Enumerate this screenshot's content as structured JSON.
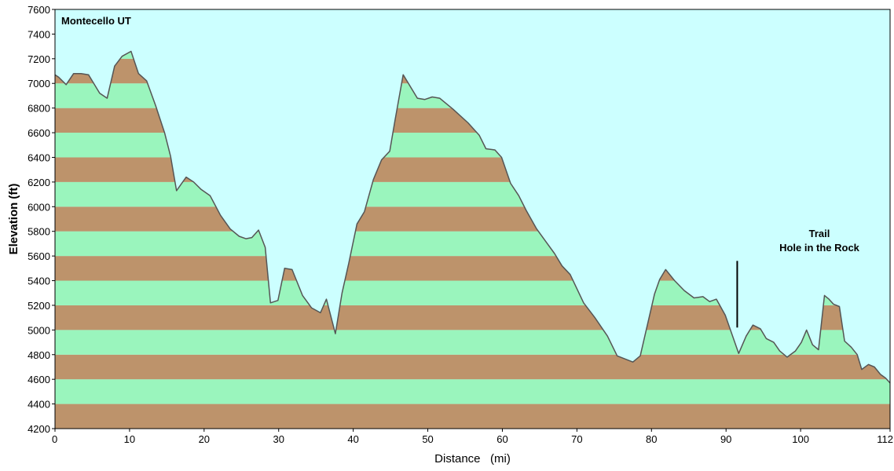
{
  "chart_data": {
    "type": "area",
    "title": "Montecello UT",
    "xlabel": "Distance   (mi)",
    "ylabel": "Elevation (ft)",
    "xlim": [
      0,
      112
    ],
    "ylim": [
      4200,
      7600
    ],
    "x_ticks": [
      0,
      10,
      20,
      30,
      40,
      50,
      60,
      70,
      80,
      90,
      100,
      112
    ],
    "y_ticks": [
      4200,
      4400,
      4600,
      4800,
      5000,
      5200,
      5400,
      5600,
      5800,
      6000,
      6200,
      6400,
      6600,
      6800,
      7000,
      7200,
      7400,
      7600
    ],
    "band_colors": [
      "#bd936b",
      "#9af5bd"
    ],
    "background_color": "#ccffff",
    "line_color": "#555555",
    "grid": false,
    "annotations": [
      {
        "lines": [
          "Trail",
          "Hole in the Rock"
        ],
        "x": 91.5,
        "y_range": [
          5020,
          5560
        ]
      }
    ],
    "series": [
      {
        "x": [
          0,
          0.5,
          1.5,
          2.5,
          3.5,
          4.5,
          6,
          7,
          8,
          9,
          10.2,
          11.2,
          12.3,
          13.5,
          14.7,
          15.5,
          16.3,
          17.6,
          18.6,
          19.6,
          20.8,
          22.2,
          23.5,
          24.7,
          25.6,
          26.4,
          27.3,
          28.2,
          28.9,
          29.9,
          30.8,
          31.8,
          33.2,
          34.4,
          35.6,
          36.4,
          37.6,
          38.5,
          39.4,
          40.5,
          41.5,
          42.7,
          43.8,
          44.9,
          45.6,
          46.7,
          48.6,
          49.6,
          50.6,
          51.6,
          53.4,
          55.4,
          56.9,
          57.8,
          59.0,
          59.9,
          61.1,
          62.2,
          63.2,
          64.6,
          65.8,
          67.0,
          68.0,
          69.1,
          70.9,
          72.4,
          74.1,
          75.4,
          77.5,
          78.5,
          80.4,
          81.1,
          81.9,
          83.1,
          84.4,
          85.7,
          86.9,
          87.8,
          88.7,
          89.9,
          91.7,
          92.7,
          93.6,
          94.6,
          95.4,
          96.4,
          97.2,
          98.2,
          99.3,
          100.1,
          100.8,
          101.6,
          102.4,
          103.2,
          103.8,
          104.4,
          105.2,
          105.9,
          106.8,
          107.6,
          108.2,
          109.1,
          109.9,
          110.7,
          111.4,
          112
        ],
        "y": [
          7070,
          7050,
          6990,
          7080,
          7080,
          7070,
          6920,
          6880,
          7140,
          7220,
          7260,
          7080,
          7020,
          6820,
          6600,
          6410,
          6130,
          6240,
          6200,
          6140,
          6090,
          5930,
          5820,
          5760,
          5740,
          5750,
          5810,
          5670,
          5220,
          5240,
          5500,
          5490,
          5280,
          5180,
          5140,
          5250,
          4970,
          5300,
          5540,
          5860,
          5960,
          6220,
          6380,
          6450,
          6700,
          7070,
          6880,
          6870,
          6890,
          6880,
          6790,
          6680,
          6580,
          6470,
          6460,
          6400,
          6190,
          6090,
          5970,
          5820,
          5720,
          5620,
          5520,
          5450,
          5220,
          5100,
          4950,
          4790,
          4740,
          4790,
          5290,
          5410,
          5490,
          5400,
          5320,
          5260,
          5270,
          5230,
          5250,
          5120,
          4810,
          4950,
          5040,
          5010,
          4930,
          4900,
          4830,
          4780,
          4830,
          4900,
          5000,
          4880,
          4840,
          5280,
          5250,
          5210,
          5190,
          4910,
          4860,
          4800,
          4680,
          4720,
          4700,
          4640,
          4610,
          4570
        ]
      }
    ]
  }
}
